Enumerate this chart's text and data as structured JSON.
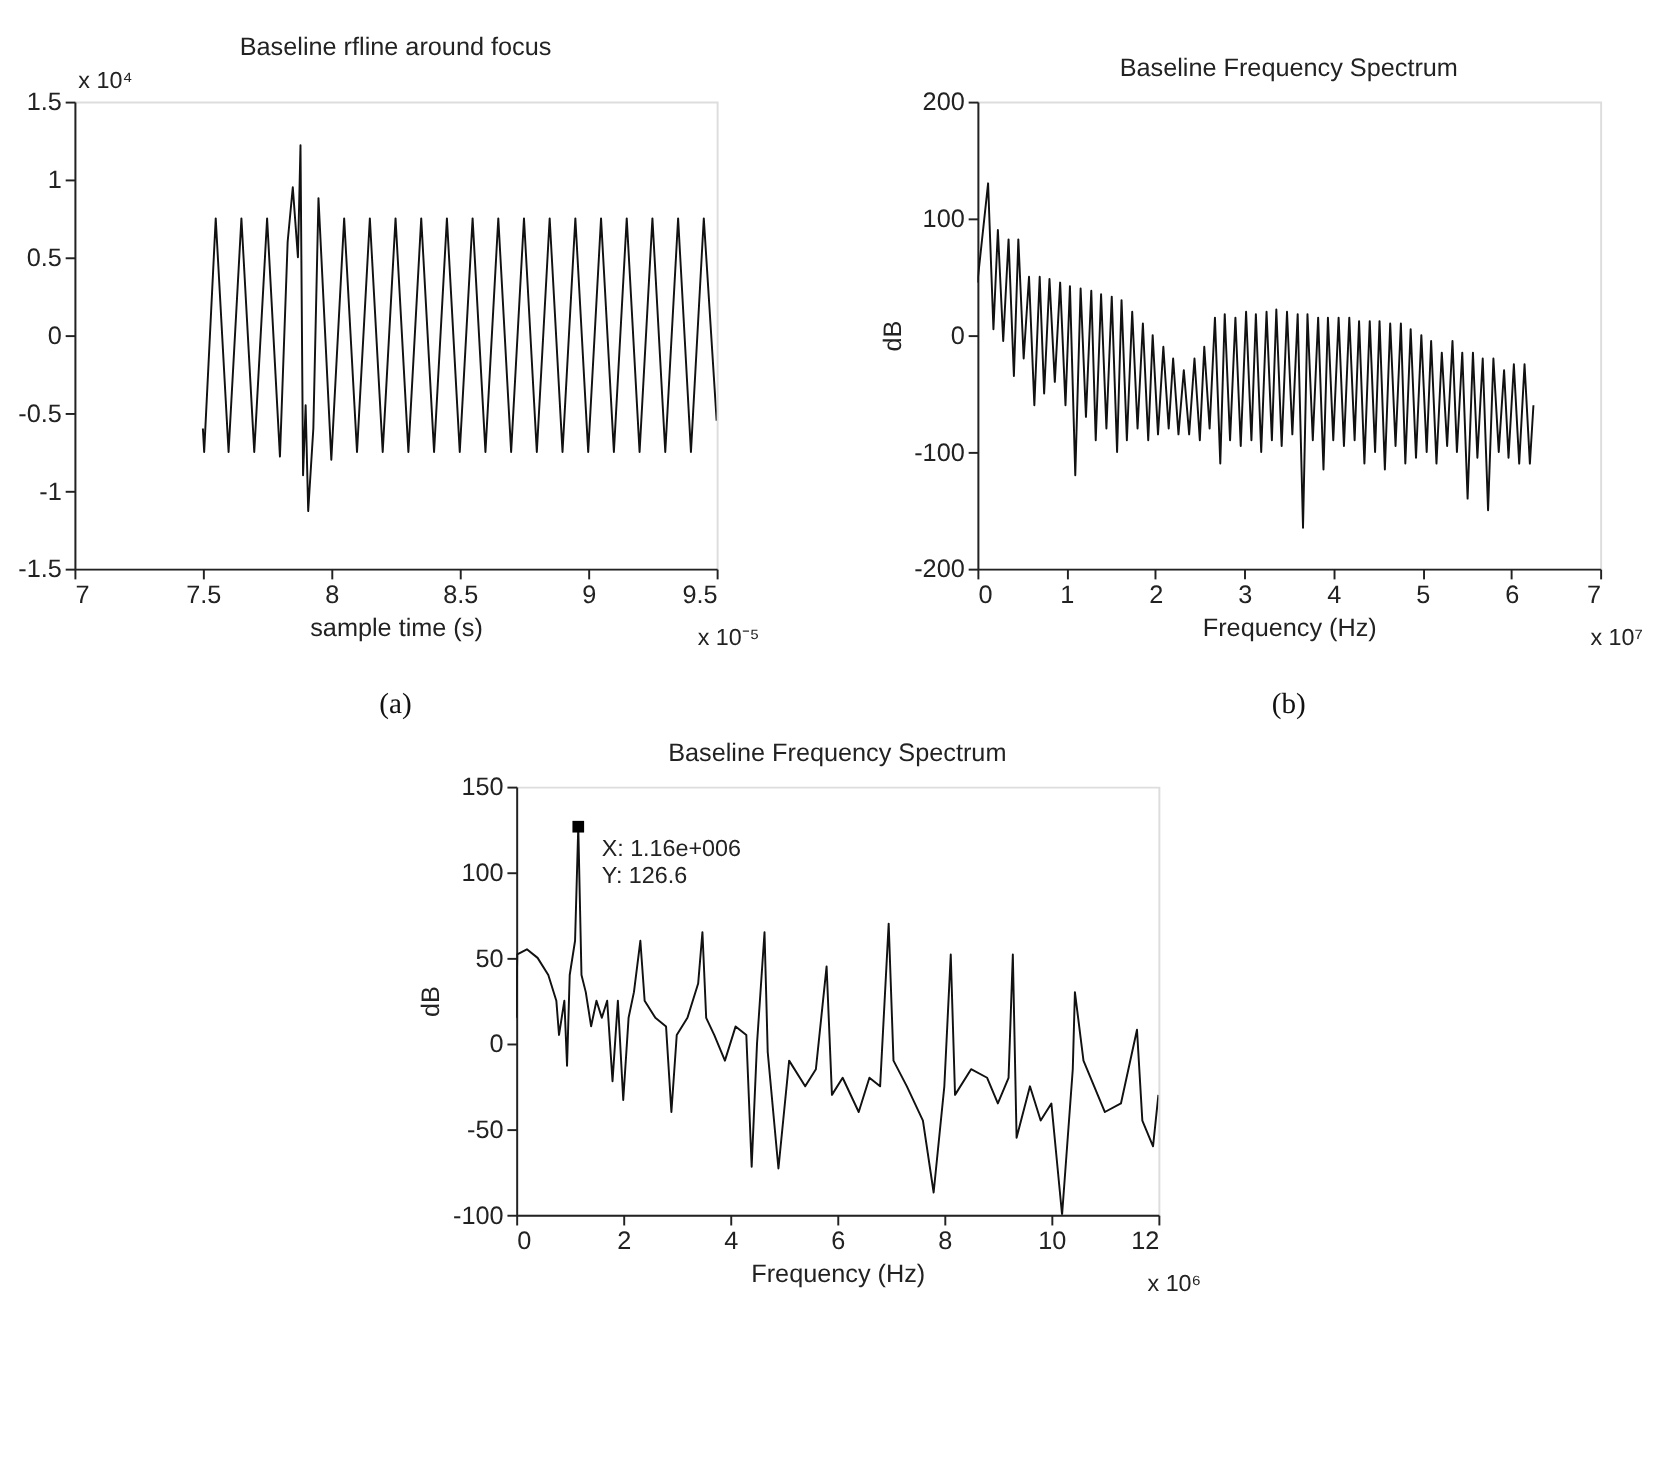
{
  "chart_data": [
    {
      "type": "line",
      "title": "Baseline rfline around focus",
      "xlabel": "sample time (s)",
      "xlim": [
        7,
        9.5
      ],
      "xticks": [
        7,
        7.5,
        8,
        8.5,
        9,
        9.5
      ],
      "ylim": [
        -1.5,
        1.5
      ],
      "yticks": [
        -1.5,
        -1,
        -0.5,
        0,
        0.5,
        1,
        1.5
      ],
      "annotations": [
        "x 10⁴",
        "x 10⁻⁵",
        "(a)"
      ],
      "x": [
        7.5,
        7.505,
        7.55,
        7.6,
        7.65,
        7.7,
        7.75,
        7.8,
        7.83,
        7.85,
        7.87,
        7.88,
        7.89,
        7.9,
        7.91,
        7.93,
        7.95,
        8.0,
        8.05,
        8.1,
        8.15,
        8.2,
        8.25,
        8.3,
        8.35,
        8.4,
        8.45,
        8.5,
        8.55,
        8.6,
        8.65,
        8.7,
        8.75,
        8.8,
        8.85,
        8.9,
        8.95,
        9.0,
        9.05,
        9.1,
        9.15,
        9.2,
        9.25,
        9.3,
        9.35,
        9.4,
        9.45,
        9.5
      ],
      "series": [
        {
          "color": "#111111",
          "values": [
            -0.6,
            -0.75,
            0.75,
            -0.75,
            0.75,
            -0.75,
            0.75,
            -0.78,
            0.6,
            0.95,
            0.5,
            1.22,
            -0.9,
            -0.45,
            -1.13,
            -0.6,
            0.88,
            -0.8,
            0.75,
            -0.75,
            0.75,
            -0.75,
            0.75,
            -0.75,
            0.75,
            -0.75,
            0.75,
            -0.75,
            0.75,
            -0.75,
            0.75,
            -0.75,
            0.75,
            -0.75,
            0.75,
            -0.75,
            0.75,
            -0.75,
            0.75,
            -0.75,
            0.75,
            -0.75,
            0.75,
            -0.75,
            0.75,
            -0.75,
            0.75,
            -0.55
          ]
        }
      ]
    },
    {
      "type": "line",
      "title": "Baseline Frequency Spectrum",
      "xlabel": "Frequency (Hz)",
      "ylabel": "dB",
      "xlim": [
        0,
        7
      ],
      "xticks": [
        0,
        1,
        2,
        3,
        4,
        5,
        6,
        7
      ],
      "ylim": [
        -200,
        200
      ],
      "yticks": [
        -200,
        -100,
        0,
        100,
        200
      ],
      "annotations": [
        "x 10⁷",
        "(b)"
      ],
      "x": [
        0,
        0.12,
        0.18,
        0.23,
        0.29,
        0.35,
        0.41,
        0.46,
        0.52,
        0.58,
        0.64,
        0.7,
        0.75,
        0.81,
        0.87,
        0.93,
        0.99,
        1.04,
        1.1,
        1.16,
        1.22,
        1.28,
        1.33,
        1.39,
        1.45,
        1.51,
        1.57,
        1.62,
        1.68,
        1.74,
        1.8,
        1.86,
        1.92,
        1.97,
        2.03,
        2.09,
        2.15,
        2.2,
        2.26,
        2.32,
        2.38,
        2.44,
        2.5,
        2.55,
        2.61,
        2.67,
        2.73,
        2.78,
        2.84,
        2.9,
        2.96,
        3.02,
        3.08,
        3.13,
        3.19,
        3.25,
        3.31,
        3.36,
        3.42,
        3.48,
        3.54,
        3.6,
        3.66,
        3.71,
        3.77,
        3.83,
        3.89,
        3.94,
        4.0,
        4.06,
        4.12,
        4.18,
        4.24,
        4.29,
        4.35,
        4.41,
        4.47,
        4.52,
        4.58,
        4.64,
        4.7,
        4.76,
        4.81,
        4.87,
        4.93,
        4.99,
        5.05,
        5.1,
        5.16,
        5.22,
        5.28,
        5.34,
        5.39,
        5.45,
        5.51,
        5.57,
        5.62,
        5.68,
        5.74,
        5.8,
        5.86,
        5.92,
        5.97,
        6.03,
        6.09,
        6.15,
        6.21,
        6.25
      ],
      "series": [
        {
          "color": "#111111",
          "values": [
            45,
            130,
            5,
            90,
            -5,
            82,
            -35,
            82,
            -20,
            50,
            -60,
            50,
            -50,
            48,
            -40,
            45,
            -60,
            42,
            -120,
            40,
            -70,
            38,
            -90,
            35,
            -80,
            33,
            -100,
            30,
            -90,
            20,
            -80,
            10,
            -90,
            0,
            -85,
            -10,
            -80,
            -20,
            -85,
            -30,
            -85,
            -20,
            -90,
            -10,
            -80,
            15,
            -110,
            18,
            -90,
            15,
            -95,
            20,
            -90,
            18,
            -100,
            20,
            -90,
            22,
            -95,
            20,
            -85,
            18,
            -165,
            18,
            -90,
            15,
            -115,
            15,
            -90,
            15,
            -95,
            15,
            -90,
            12,
            -110,
            12,
            -100,
            12,
            -115,
            10,
            -95,
            10,
            -110,
            5,
            -105,
            0,
            -100,
            -5,
            -110,
            -15,
            -95,
            -5,
            -100,
            -15,
            -140,
            -15,
            -105,
            -20,
            -150,
            -20,
            -100,
            -30,
            -105,
            -25,
            -110,
            -25,
            -110,
            -60
          ]
        }
      ]
    },
    {
      "type": "line",
      "title": "Baseline Frequency Spectrum",
      "xlabel": "Frequency (Hz)",
      "ylabel": "dB",
      "xlim": [
        0,
        12
      ],
      "xticks": [
        0,
        2,
        4,
        6,
        8,
        10,
        12
      ],
      "ylim": [
        -100,
        150
      ],
      "yticks": [
        -100,
        -50,
        0,
        50,
        100,
        150
      ],
      "annotations": [
        "x 10⁶",
        {
          "text": "X: 1.16e+006\nY: 126.6",
          "x": 1.16,
          "y": 126.6
        }
      ],
      "x": [
        0,
        0.02,
        0.2,
        0.4,
        0.6,
        0.75,
        0.8,
        0.9,
        0.95,
        1.0,
        1.1,
        1.16,
        1.22,
        1.3,
        1.4,
        1.5,
        1.6,
        1.7,
        1.8,
        1.9,
        2.0,
        2.1,
        2.2,
        2.32,
        2.4,
        2.6,
        2.8,
        2.9,
        3.0,
        3.2,
        3.4,
        3.48,
        3.55,
        3.7,
        3.9,
        4.1,
        4.3,
        4.4,
        4.5,
        4.64,
        4.7,
        4.9,
        5.1,
        5.4,
        5.6,
        5.8,
        5.9,
        6.1,
        6.4,
        6.6,
        6.8,
        6.96,
        7.05,
        7.3,
        7.6,
        7.8,
        8.0,
        8.12,
        8.2,
        8.5,
        8.8,
        9.0,
        9.2,
        9.28,
        9.35,
        9.6,
        9.8,
        10.0,
        10.2,
        10.4,
        10.44,
        10.6,
        10.8,
        11.0,
        11.3,
        11.6,
        11.7,
        11.9,
        12.0
      ],
      "series": [
        {
          "color": "#111111",
          "values": [
            15,
            52,
            55,
            50,
            40,
            25,
            5,
            25,
            -13,
            40,
            60,
            126.6,
            40,
            30,
            10,
            25,
            15,
            25,
            -22,
            25,
            -33,
            15,
            30,
            60,
            25,
            15,
            10,
            -40,
            5,
            15,
            35,
            65,
            15,
            5,
            -10,
            10,
            5,
            -72,
            0,
            65,
            -5,
            -73,
            -10,
            -25,
            -15,
            45,
            -30,
            -20,
            -40,
            -20,
            -25,
            70,
            -10,
            -25,
            -45,
            -87,
            -25,
            52,
            -30,
            -15,
            -20,
            -35,
            -20,
            52,
            -55,
            -25,
            -45,
            -35,
            -100,
            -15,
            30,
            -10,
            -25,
            -40,
            -35,
            8,
            -45,
            -60,
            -30
          ]
        }
      ]
    }
  ]
}
